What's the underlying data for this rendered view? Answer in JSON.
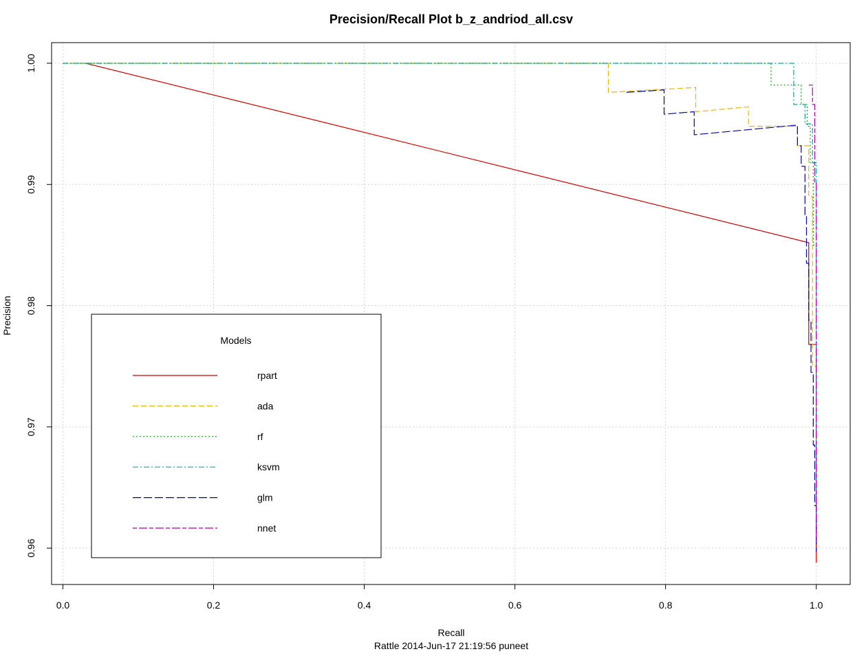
{
  "chart_data": {
    "type": "line",
    "title": "Precision/Recall Plot  b_z_andriod_all.csv",
    "xlabel": "Recall",
    "ylabel": "Precision",
    "subtitle": "Rattle 2014-Jun-17 21:19:56 puneet",
    "xlim": [
      -0.015,
      1.045
    ],
    "ylim": [
      0.957,
      1.0017
    ],
    "x_ticks": [
      0.0,
      0.2,
      0.4,
      0.6,
      0.8,
      1.0
    ],
    "x_tick_labels": [
      "0.0",
      "0.2",
      "0.4",
      "0.6",
      "0.8",
      "1.0"
    ],
    "y_ticks": [
      0.96,
      0.97,
      0.98,
      0.99,
      1.0
    ],
    "y_tick_labels": [
      "0.96",
      "0.97",
      "0.98",
      "0.99",
      "1.00"
    ],
    "grid": true,
    "legend": {
      "title": "Models",
      "placement": "bottom-left"
    },
    "series": [
      {
        "name": "rpart",
        "color": "#CC0000",
        "dash": "solid",
        "points": [
          [
            0.03,
            1.0
          ],
          [
            0.99,
            0.9852
          ],
          [
            0.99,
            0.9768
          ],
          [
            1.0,
            0.9768
          ],
          [
            1.0,
            0.9588
          ]
        ]
      },
      {
        "name": "ada",
        "color": "#E6B800",
        "dash": "dashed",
        "points": [
          [
            0.0,
            1.0
          ],
          [
            0.724,
            1.0
          ],
          [
            0.724,
            0.9976
          ],
          [
            0.84,
            0.998
          ],
          [
            0.84,
            0.996
          ],
          [
            0.91,
            0.9964
          ],
          [
            0.91,
            0.9948
          ],
          [
            0.975,
            0.9948
          ],
          [
            0.975,
            0.9932
          ],
          [
            0.99,
            0.9932
          ],
          [
            0.99,
            0.989
          ],
          [
            0.995,
            0.989
          ],
          [
            0.995,
            0.975
          ],
          [
            1.0,
            0.975
          ],
          [
            1.0,
            0.9605
          ]
        ]
      },
      {
        "name": "rf",
        "color": "#00AA00",
        "dash": "dotted",
        "points": [
          [
            0.0,
            1.0
          ],
          [
            0.94,
            1.0
          ],
          [
            0.94,
            0.9982
          ],
          [
            0.98,
            0.9982
          ],
          [
            0.98,
            0.9966
          ],
          [
            0.988,
            0.9966
          ],
          [
            0.988,
            0.9948
          ],
          [
            0.992,
            0.9948
          ],
          [
            0.992,
            0.9918
          ],
          [
            0.996,
            0.9918
          ],
          [
            0.996,
            0.985
          ],
          [
            1.0,
            0.985
          ],
          [
            1.0,
            0.9605
          ]
        ]
      },
      {
        "name": "ksvm",
        "color": "#00AAAA",
        "dash": "dashdot",
        "points": [
          [
            0.0,
            1.0
          ],
          [
            0.97,
            1.0
          ],
          [
            0.97,
            0.9966
          ],
          [
            0.985,
            0.9966
          ],
          [
            0.985,
            0.995
          ],
          [
            0.995,
            0.995
          ],
          [
            0.995,
            0.9918
          ],
          [
            1.0,
            0.9918
          ],
          [
            1.0,
            0.962
          ]
        ]
      },
      {
        "name": "glm",
        "color": "#000099",
        "dash": "longdash",
        "points": [
          [
            0.748,
            0.9976
          ],
          [
            0.798,
            0.9978
          ],
          [
            0.798,
            0.9958
          ],
          [
            0.838,
            0.996
          ],
          [
            0.838,
            0.9941
          ],
          [
            0.975,
            0.9949
          ],
          [
            0.975,
            0.9932
          ],
          [
            0.98,
            0.9932
          ],
          [
            0.98,
            0.9915
          ],
          [
            0.985,
            0.9915
          ],
          [
            0.985,
            0.9875
          ],
          [
            0.987,
            0.9875
          ],
          [
            0.987,
            0.9835
          ],
          [
            0.99,
            0.9835
          ],
          [
            0.99,
            0.9788
          ],
          [
            0.993,
            0.9788
          ],
          [
            0.993,
            0.9745
          ],
          [
            0.996,
            0.9745
          ],
          [
            0.996,
            0.9685
          ],
          [
            0.998,
            0.9685
          ],
          [
            0.998,
            0.9635
          ],
          [
            1.0,
            0.9635
          ],
          [
            1.0,
            0.9597
          ]
        ]
      },
      {
        "name": "nnet",
        "color": "#AA00AA",
        "dash": "twodash",
        "points": [
          [
            0.99,
            0.9982
          ],
          [
            0.995,
            0.9982
          ],
          [
            0.995,
            0.9966
          ],
          [
            0.998,
            0.9966
          ],
          [
            0.998,
            0.9902
          ],
          [
            1.0,
            0.9902
          ],
          [
            1.0,
            0.9605
          ]
        ]
      }
    ]
  }
}
